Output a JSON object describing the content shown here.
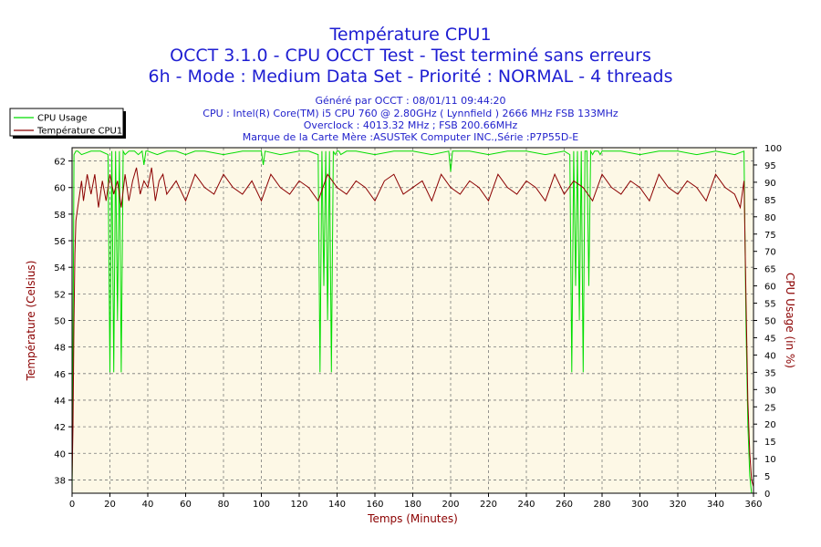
{
  "title": "Température CPU1",
  "subtitle1": "OCCT 3.1.0 - CPU OCCT Test - Test terminé sans erreurs",
  "subtitle2": "6h - Mode : Medium Data Set - Priorité : NORMAL - 4 threads",
  "info": [
    "Généré par OCCT : 08/01/11 09:44:20",
    "CPU : Intel(R) Core(TM) i5 CPU 760 @ 2.80GHz ( Lynnfield ) 2666 MHz FSB 133MHz",
    "Overclock : 4013.32 MHz ; FSB 200.66MHz",
    "Marque de la Carte Mère :ASUSTeK Computer INC.,Série :P7P55D-E"
  ],
  "colors": {
    "title": "#1e1ed2",
    "usage": "#00dd00",
    "temperature": "#8b0000",
    "plot_bg": "#fdf8e6",
    "grid": "#7a7a7a"
  },
  "chart_data": {
    "type": "line",
    "xlabel": "Temps (Minutes)",
    "ylabel_left": "Température (Celsius)",
    "ylabel_right": "CPU Usage (in %)",
    "xlim": [
      0,
      360
    ],
    "ylim_left": [
      37,
      63
    ],
    "ylim_right": [
      0,
      100
    ],
    "xticks": [
      0,
      20,
      40,
      60,
      80,
      100,
      120,
      140,
      160,
      180,
      200,
      220,
      240,
      260,
      280,
      300,
      320,
      340,
      360
    ],
    "yticks_left": [
      38,
      40,
      42,
      44,
      46,
      48,
      50,
      52,
      54,
      56,
      58,
      60,
      62
    ],
    "yticks_right": [
      0,
      5,
      10,
      15,
      20,
      25,
      30,
      35,
      40,
      45,
      50,
      55,
      60,
      65,
      70,
      75,
      80,
      85,
      90,
      95,
      100
    ],
    "grid": true,
    "legend_position": "top-left",
    "series": [
      {
        "name": "CPU Usage",
        "axis": "right",
        "x": [
          0,
          0.5,
          1,
          2,
          3,
          5,
          10,
          15,
          19,
          20,
          21,
          22,
          23,
          24,
          25,
          26,
          27,
          28,
          30,
          33,
          35,
          37,
          38,
          39,
          40,
          45,
          50,
          55,
          60,
          65,
          70,
          80,
          90,
          100,
          101,
          102,
          110,
          120,
          125,
          130,
          131,
          132,
          133,
          134,
          135,
          136,
          137,
          138,
          139,
          140,
          141,
          142,
          145,
          150,
          160,
          170,
          180,
          190,
          199,
          200,
          201,
          210,
          220,
          230,
          240,
          250,
          260,
          263,
          264,
          265,
          266,
          267,
          268,
          269,
          270,
          271,
          272,
          273,
          274,
          275,
          276,
          277,
          278,
          279,
          280,
          290,
          300,
          310,
          320,
          330,
          340,
          350,
          355,
          356,
          357,
          358,
          359,
          360
        ],
        "y": [
          0,
          40,
          98,
          99,
          99,
          98,
          99,
          99,
          98,
          35,
          99,
          35,
          99,
          50,
          99,
          35,
          99,
          98,
          99,
          99,
          98,
          99,
          95,
          99,
          99,
          98,
          99,
          99,
          98,
          99,
          99,
          98,
          99,
          99,
          95,
          99,
          98,
          99,
          99,
          98,
          35,
          99,
          60,
          99,
          50,
          99,
          35,
          99,
          98,
          99,
          99,
          98,
          99,
          99,
          98,
          99,
          99,
          98,
          99,
          93,
          99,
          99,
          98,
          99,
          99,
          98,
          99,
          98,
          35,
          99,
          60,
          99,
          50,
          99,
          35,
          99,
          99,
          60,
          99,
          98,
          99,
          99,
          99,
          98,
          99,
          99,
          98,
          99,
          99,
          98,
          99,
          98,
          99,
          50,
          20,
          5,
          0,
          0
        ]
      },
      {
        "name": "Température CPU1",
        "axis": "left",
        "x": [
          0,
          0.5,
          1,
          1.5,
          2,
          3,
          4,
          5,
          6,
          8,
          10,
          12,
          14,
          16,
          18,
          20,
          22,
          24,
          26,
          28,
          30,
          32,
          34,
          36,
          38,
          40,
          42,
          44,
          46,
          48,
          50,
          55,
          60,
          65,
          70,
          75,
          80,
          85,
          90,
          95,
          100,
          105,
          110,
          115,
          120,
          125,
          130,
          135,
          140,
          145,
          150,
          155,
          160,
          165,
          170,
          175,
          180,
          185,
          190,
          195,
          200,
          205,
          210,
          215,
          220,
          225,
          230,
          235,
          240,
          245,
          250,
          255,
          260,
          265,
          270,
          275,
          280,
          285,
          290,
          295,
          300,
          305,
          310,
          315,
          320,
          325,
          330,
          335,
          340,
          345,
          350,
          353,
          355,
          356,
          357,
          358,
          359,
          360
        ],
        "y": [
          38,
          42,
          50,
          55,
          57.5,
          58.5,
          59.5,
          60.5,
          59,
          61,
          59.5,
          61,
          58.5,
          60.5,
          59,
          61,
          59.5,
          60.5,
          58.5,
          61,
          59,
          60.5,
          61.5,
          59.5,
          60.5,
          60,
          61.5,
          59,
          60.5,
          61,
          59.5,
          60.5,
          59,
          61,
          60,
          59.5,
          61,
          60,
          59.5,
          60.5,
          59,
          61,
          60,
          59.5,
          60.5,
          60,
          59,
          61,
          60,
          59.5,
          60.5,
          60,
          59,
          60.5,
          61,
          59.5,
          60,
          60.5,
          59,
          61,
          60,
          59.5,
          60.5,
          60,
          59,
          61,
          60,
          59.5,
          60.5,
          60,
          59,
          61,
          59.5,
          60.5,
          60,
          59,
          61,
          60,
          59.5,
          60.5,
          60,
          59,
          61,
          60,
          59.5,
          60.5,
          60,
          59,
          61,
          60,
          59.5,
          58.5,
          60.5,
          52,
          44,
          40,
          38,
          37.5
        ]
      }
    ]
  }
}
